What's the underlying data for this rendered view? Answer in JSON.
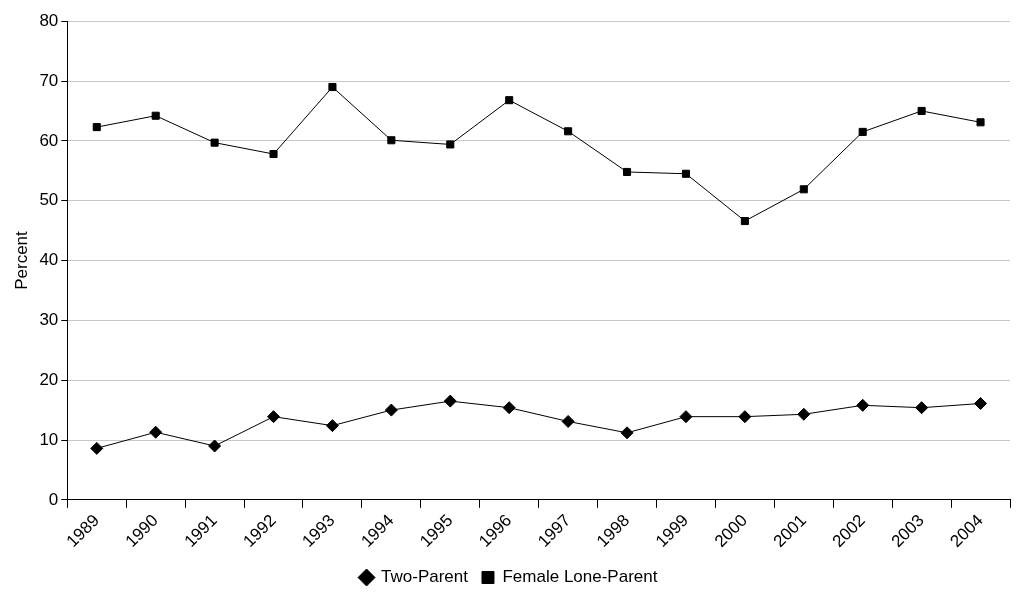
{
  "chart_data": {
    "type": "line",
    "ylabel": "Percent",
    "categories": [
      "1989",
      "1990",
      "1991",
      "1992",
      "1993",
      "1994",
      "1995",
      "1996",
      "1997",
      "1998",
      "1999",
      "2000",
      "2001",
      "2002",
      "2003",
      "2004"
    ],
    "series": [
      {
        "name": "Two-Parent",
        "color": "#000000",
        "marker": "diamond",
        "values": [
          8.6,
          11.3,
          9.0,
          13.9,
          12.4,
          15.0,
          16.5,
          15.4,
          13.1,
          11.2,
          13.9,
          13.9,
          14.3,
          15.8,
          15.4,
          16.1
        ]
      },
      {
        "name": "Female Lone-Parent",
        "color": "#000000",
        "marker": "square",
        "values": [
          62.3,
          64.2,
          59.7,
          57.8,
          69.0,
          60.1,
          59.4,
          66.8,
          61.6,
          54.8,
          54.5,
          46.6,
          51.9,
          61.5,
          65.0,
          63.1
        ]
      }
    ],
    "ylim": [
      0,
      80
    ],
    "yticks": [
      0,
      10,
      20,
      30,
      40,
      50,
      60,
      70,
      80
    ],
    "grid": "y",
    "legend": "bottom",
    "line_style": "solid"
  }
}
